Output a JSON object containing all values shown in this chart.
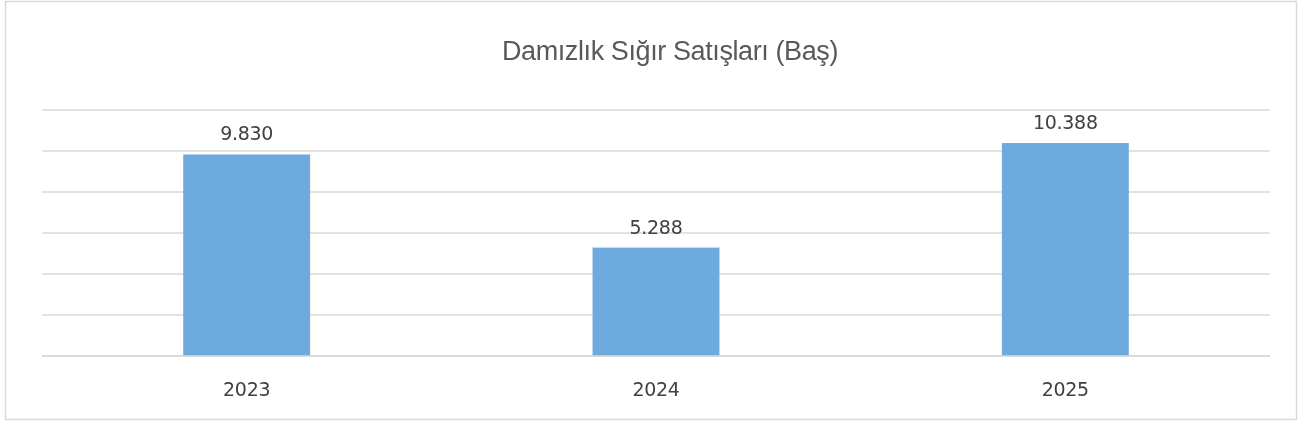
{
  "chart_data": {
    "type": "bar",
    "title": "Damızlık Sığır Satışları (Baş)",
    "categories": [
      "2023",
      "2024",
      "2025"
    ],
    "values": [
      9830,
      5288,
      10388
    ],
    "value_labels": [
      "9.830",
      "5.288",
      "10.388"
    ],
    "color": "#6daadd",
    "ylim": [
      0,
      12000
    ],
    "yticks": [
      {
        "value": 0,
        "label": null
      },
      {
        "value": 2000,
        "label": null
      },
      {
        "value": 4000,
        "label": null
      },
      {
        "value": 6000,
        "label": null
      },
      {
        "value": 8000,
        "label": null
      },
      {
        "value": 10000,
        "label": null
      },
      {
        "value": 12000,
        "label": null
      }
    ],
    "grid": "y",
    "tick_labels": "x"
  }
}
